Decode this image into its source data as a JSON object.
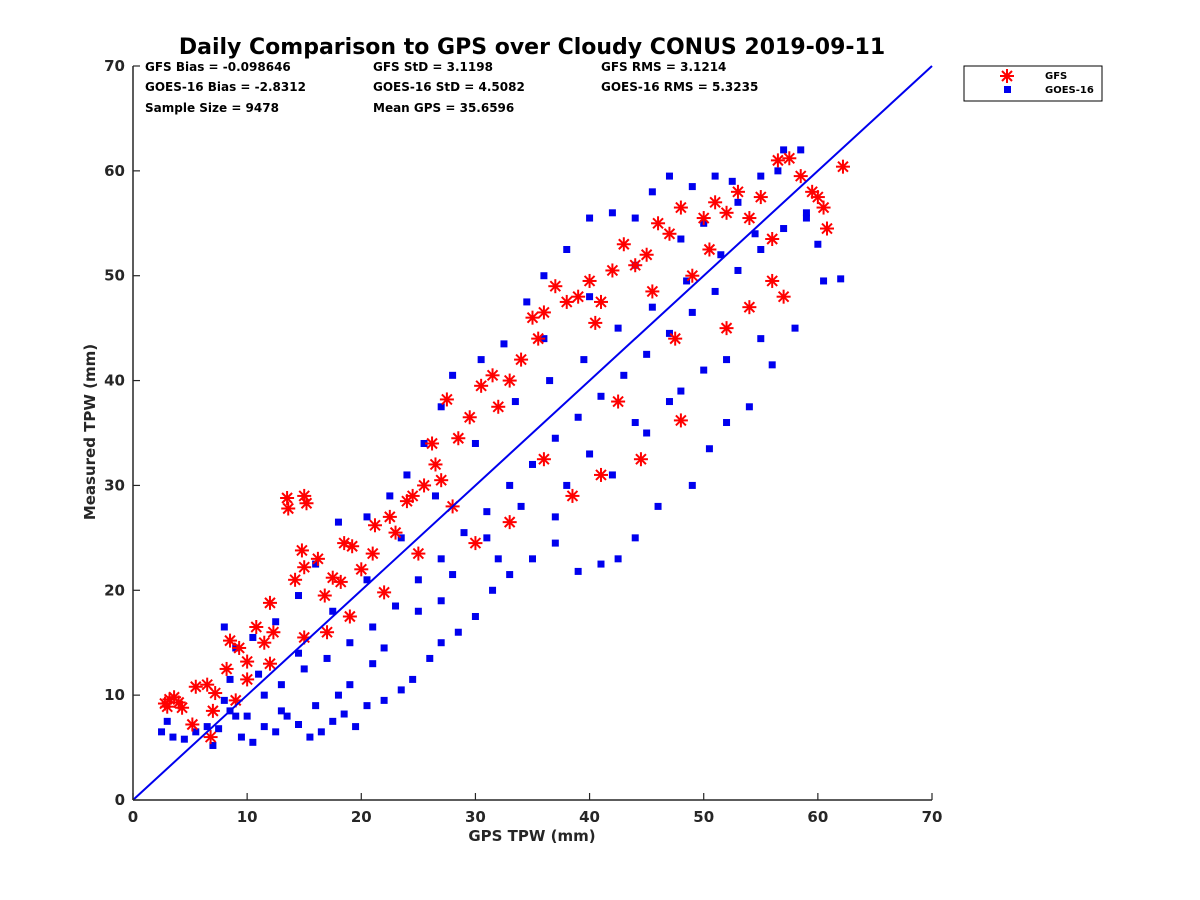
{
  "chart_data": {
    "type": "scatter",
    "title": "Daily Comparison to GPS over Cloudy CONUS 2019-09-11",
    "xlabel": "GPS TPW (mm)",
    "ylabel": "Measured TPW (mm)",
    "xlim": [
      0,
      70
    ],
    "ylim": [
      0,
      70
    ],
    "xticks": [
      "0",
      "10",
      "20",
      "30",
      "40",
      "50",
      "60",
      "70"
    ],
    "yticks": [
      "0",
      "10",
      "20",
      "30",
      "40",
      "50",
      "60",
      "70"
    ],
    "grid": false,
    "legend_position": "outside-top-right",
    "stats": {
      "gfs_bias": "GFS Bias = -0.098646",
      "goes_bias": "GOES-16 Bias = -2.8312",
      "sample_size": "Sample Size = 9478",
      "gfs_std": "GFS StD = 3.1198",
      "goes_std": "GOES-16 StD = 4.5082",
      "mean_gps": "Mean GPS = 35.6596",
      "gfs_rms": "GFS RMS = 3.1214",
      "goes_rms": "GOES-16 RMS = 5.3235"
    },
    "reference_line": {
      "x": [
        0,
        70
      ],
      "y": [
        0,
        70
      ],
      "color": "#0000ee"
    },
    "series": [
      {
        "name": "GFS",
        "marker": "asterisk",
        "color": "#ff0000",
        "points": [
          [
            2.8,
            9.2
          ],
          [
            3.2,
            9.6
          ],
          [
            3.6,
            9.8
          ],
          [
            4.0,
            9.3
          ],
          [
            4.3,
            8.8
          ],
          [
            3.0,
            8.9
          ],
          [
            5.2,
            7.2
          ],
          [
            5.5,
            10.8
          ],
          [
            6.5,
            11.0
          ],
          [
            7.0,
            8.5
          ],
          [
            7.2,
            10.2
          ],
          [
            6.8,
            6.0
          ],
          [
            8.2,
            12.5
          ],
          [
            8.5,
            15.2
          ],
          [
            9.3,
            14.5
          ],
          [
            10.0,
            13.2
          ],
          [
            10.8,
            16.5
          ],
          [
            11.5,
            15.0
          ],
          [
            12.0,
            18.8
          ],
          [
            12.3,
            16.0
          ],
          [
            13.5,
            28.8
          ],
          [
            13.6,
            27.8
          ],
          [
            15.0,
            29.0
          ],
          [
            15.2,
            28.3
          ],
          [
            14.2,
            21.0
          ],
          [
            14.8,
            23.8
          ],
          [
            15.0,
            22.2
          ],
          [
            16.2,
            23.0
          ],
          [
            16.8,
            19.5
          ],
          [
            17.5,
            21.2
          ],
          [
            18.5,
            24.5
          ],
          [
            19.2,
            24.2
          ],
          [
            18.2,
            20.8
          ],
          [
            20.0,
            22.0
          ],
          [
            21.2,
            26.2
          ],
          [
            22.5,
            27.0
          ],
          [
            23.0,
            25.5
          ],
          [
            24.5,
            29.0
          ],
          [
            25.5,
            30.0
          ],
          [
            26.2,
            34.0
          ],
          [
            26.5,
            32.0
          ],
          [
            27.5,
            38.2
          ],
          [
            28.5,
            34.5
          ],
          [
            29.5,
            36.5
          ],
          [
            30.5,
            39.5
          ],
          [
            31.5,
            40.5
          ],
          [
            32.0,
            37.5
          ],
          [
            33.0,
            40.0
          ],
          [
            34.0,
            42.0
          ],
          [
            35.0,
            46.0
          ],
          [
            36.0,
            46.5
          ],
          [
            37.0,
            49.0
          ],
          [
            38.0,
            47.5
          ],
          [
            39.0,
            48.0
          ],
          [
            40.0,
            49.5
          ],
          [
            41.0,
            47.5
          ],
          [
            42.0,
            50.5
          ],
          [
            43.0,
            53.0
          ],
          [
            44.0,
            51.0
          ],
          [
            45.0,
            52.0
          ],
          [
            46.0,
            55.0
          ],
          [
            47.0,
            54.0
          ],
          [
            48.0,
            56.5
          ],
          [
            49.0,
            50.0
          ],
          [
            50.0,
            55.5
          ],
          [
            51.0,
            57.0
          ],
          [
            52.0,
            56.0
          ],
          [
            53.0,
            58.0
          ],
          [
            54.0,
            55.5
          ],
          [
            55.0,
            57.5
          ],
          [
            56.0,
            53.5
          ],
          [
            56.5,
            61.0
          ],
          [
            57.5,
            61.2
          ],
          [
            58.5,
            59.5
          ],
          [
            59.5,
            58.0
          ],
          [
            60.0,
            57.5
          ],
          [
            60.5,
            56.5
          ],
          [
            60.8,
            54.5
          ],
          [
            62.2,
            60.4
          ],
          [
            36.0,
            32.5
          ],
          [
            38.5,
            29.0
          ],
          [
            41.0,
            31.0
          ],
          [
            44.5,
            32.5
          ],
          [
            48.0,
            36.2
          ],
          [
            52.0,
            45.0
          ],
          [
            54.0,
            47.0
          ],
          [
            56.0,
            49.5
          ],
          [
            57.0,
            48.0
          ],
          [
            33.0,
            26.5
          ],
          [
            30.0,
            24.5
          ],
          [
            28.0,
            28.0
          ],
          [
            25.0,
            23.5
          ],
          [
            22.0,
            19.8
          ],
          [
            19.0,
            17.5
          ],
          [
            17.0,
            16.0
          ],
          [
            15.0,
            15.5
          ],
          [
            12.0,
            13.0
          ],
          [
            10.0,
            11.5
          ],
          [
            9.0,
            9.5
          ],
          [
            35.5,
            44.0
          ],
          [
            40.5,
            45.5
          ],
          [
            45.5,
            48.5
          ],
          [
            50.5,
            52.5
          ],
          [
            42.5,
            38.0
          ],
          [
            47.5,
            44.0
          ],
          [
            24.0,
            28.5
          ],
          [
            21.0,
            23.5
          ],
          [
            27.0,
            30.5
          ]
        ]
      },
      {
        "name": "GOES-16",
        "marker": "square",
        "color": "#0000ee",
        "points": [
          [
            2.5,
            6.5
          ],
          [
            3.0,
            7.5
          ],
          [
            3.5,
            6.0
          ],
          [
            4.5,
            5.8
          ],
          [
            5.5,
            6.5
          ],
          [
            6.5,
            7.0
          ],
          [
            7.0,
            5.2
          ],
          [
            7.5,
            6.8
          ],
          [
            8.0,
            9.5
          ],
          [
            8.5,
            11.5
          ],
          [
            9.0,
            8.0
          ],
          [
            9.5,
            6.0
          ],
          [
            10.5,
            5.5
          ],
          [
            11.5,
            7.0
          ],
          [
            12.5,
            6.5
          ],
          [
            13.5,
            8.0
          ],
          [
            14.5,
            7.2
          ],
          [
            15.5,
            6.0
          ],
          [
            16.5,
            6.5
          ],
          [
            17.5,
            7.5
          ],
          [
            18.5,
            8.2
          ],
          [
            19.5,
            7.0
          ],
          [
            20.5,
            9.0
          ],
          [
            22.0,
            9.5
          ],
          [
            23.5,
            10.5
          ],
          [
            24.5,
            11.5
          ],
          [
            26.0,
            13.5
          ],
          [
            27.0,
            15.0
          ],
          [
            28.5,
            16.0
          ],
          [
            30.0,
            17.5
          ],
          [
            31.5,
            20.0
          ],
          [
            33.0,
            21.5
          ],
          [
            35.0,
            23.0
          ],
          [
            37.0,
            24.5
          ],
          [
            39.0,
            21.8
          ],
          [
            41.0,
            22.5
          ],
          [
            42.5,
            23.0
          ],
          [
            44.0,
            25.0
          ],
          [
            46.0,
            28.0
          ],
          [
            49.0,
            30.0
          ],
          [
            50.5,
            33.5
          ],
          [
            52.0,
            36.0
          ],
          [
            54.0,
            37.5
          ],
          [
            56.0,
            41.5
          ],
          [
            58.0,
            45.0
          ],
          [
            60.5,
            49.5
          ],
          [
            62.0,
            49.7
          ],
          [
            60.0,
            53.0
          ],
          [
            59.0,
            56.0
          ],
          [
            58.5,
            62.0
          ],
          [
            57.0,
            62.0
          ],
          [
            56.5,
            60.0
          ],
          [
            55.0,
            59.5
          ],
          [
            52.5,
            59.0
          ],
          [
            51.0,
            59.5
          ],
          [
            49.0,
            58.5
          ],
          [
            47.0,
            59.5
          ],
          [
            45.5,
            58.0
          ],
          [
            44.0,
            55.5
          ],
          [
            42.0,
            56.0
          ],
          [
            40.0,
            55.5
          ],
          [
            38.0,
            52.5
          ],
          [
            36.0,
            50.0
          ],
          [
            34.5,
            47.5
          ],
          [
            32.5,
            43.5
          ],
          [
            30.5,
            42.0
          ],
          [
            28.0,
            40.5
          ],
          [
            27.0,
            37.5
          ],
          [
            25.5,
            34.0
          ],
          [
            24.0,
            31.0
          ],
          [
            22.5,
            29.0
          ],
          [
            20.5,
            27.0
          ],
          [
            18.0,
            26.5
          ],
          [
            16.0,
            22.5
          ],
          [
            14.5,
            19.5
          ],
          [
            12.5,
            17.0
          ],
          [
            10.5,
            15.5
          ],
          [
            9.0,
            14.5
          ],
          [
            8.0,
            16.5
          ],
          [
            11.0,
            12.0
          ],
          [
            13.0,
            11.0
          ],
          [
            15.0,
            12.5
          ],
          [
            17.0,
            13.5
          ],
          [
            19.0,
            15.0
          ],
          [
            21.0,
            16.5
          ],
          [
            23.0,
            18.5
          ],
          [
            25.0,
            21.0
          ],
          [
            27.0,
            23.0
          ],
          [
            29.0,
            25.5
          ],
          [
            31.0,
            27.5
          ],
          [
            33.0,
            30.0
          ],
          [
            35.0,
            32.0
          ],
          [
            37.0,
            34.5
          ],
          [
            39.0,
            36.5
          ],
          [
            41.0,
            38.5
          ],
          [
            43.0,
            40.5
          ],
          [
            45.0,
            42.5
          ],
          [
            47.0,
            44.5
          ],
          [
            49.0,
            46.5
          ],
          [
            51.0,
            48.5
          ],
          [
            53.0,
            50.5
          ],
          [
            55.0,
            52.5
          ],
          [
            57.0,
            54.5
          ],
          [
            59.0,
            55.5
          ],
          [
            33.5,
            38.0
          ],
          [
            36.5,
            40.0
          ],
          [
            39.5,
            42.0
          ],
          [
            42.5,
            45.0
          ],
          [
            45.5,
            47.0
          ],
          [
            48.5,
            49.5
          ],
          [
            51.5,
            52.0
          ],
          [
            54.5,
            54.0
          ],
          [
            30.0,
            34.0
          ],
          [
            26.5,
            29.0
          ],
          [
            23.5,
            25.0
          ],
          [
            20.5,
            21.0
          ],
          [
            17.5,
            18.0
          ],
          [
            14.5,
            14.0
          ],
          [
            11.5,
            10.0
          ],
          [
            8.5,
            8.5
          ],
          [
            38.0,
            30.0
          ],
          [
            40.0,
            33.0
          ],
          [
            44.0,
            36.0
          ],
          [
            48.0,
            39.0
          ],
          [
            52.0,
            42.0
          ],
          [
            55.0,
            44.0
          ],
          [
            34.0,
            28.0
          ],
          [
            31.0,
            25.0
          ],
          [
            28.0,
            21.5
          ],
          [
            25.0,
            18.0
          ],
          [
            22.0,
            14.5
          ],
          [
            19.0,
            11.0
          ],
          [
            16.0,
            9.0
          ],
          [
            13.0,
            8.5
          ],
          [
            10.0,
            8.0
          ],
          [
            36.0,
            44.0
          ],
          [
            40.0,
            48.0
          ],
          [
            44.0,
            51.0
          ],
          [
            48.0,
            53.5
          ],
          [
            50.0,
            55.0
          ],
          [
            53.0,
            57.0
          ],
          [
            45.0,
            35.0
          ],
          [
            47.0,
            38.0
          ],
          [
            50.0,
            41.0
          ],
          [
            42.0,
            31.0
          ],
          [
            37.0,
            27.0
          ],
          [
            32.0,
            23.0
          ],
          [
            27.0,
            19.0
          ],
          [
            21.0,
            13.0
          ],
          [
            18.0,
            10.0
          ]
        ]
      }
    ]
  }
}
